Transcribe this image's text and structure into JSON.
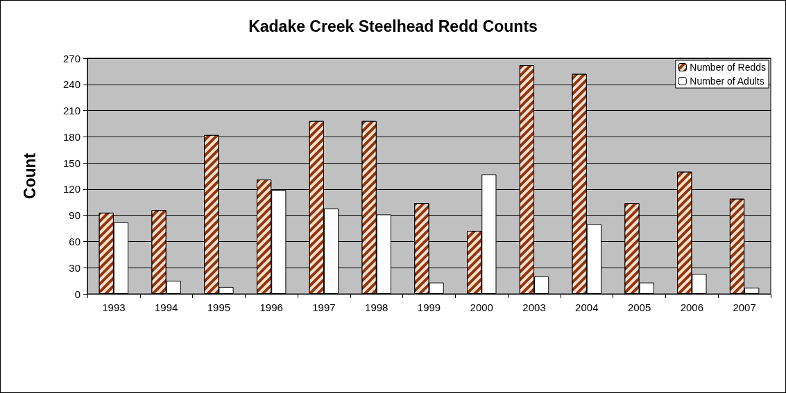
{
  "chart_data": {
    "type": "bar",
    "title": "Kadake Creek Steelhead Redd Counts",
    "ylabel": "Count",
    "categories": [
      "1993",
      "1994",
      "1995",
      "1996",
      "1997",
      "1998",
      "1999",
      "2000",
      "2003",
      "2004",
      "2005",
      "2006",
      "2007"
    ],
    "series": [
      {
        "name": "Number of Redds",
        "color": "#993300",
        "values": [
          93,
          96,
          182,
          131,
          198,
          198,
          104,
          72,
          262,
          252,
          104,
          140,
          109
        ]
      },
      {
        "name": "Number of Adults",
        "color": "#ffffff",
        "values": [
          82,
          15,
          8,
          119,
          98,
          91,
          13,
          137,
          20,
          80,
          13,
          23,
          7
        ]
      }
    ],
    "ylim": [
      0,
      270
    ],
    "yticks": [
      0,
      30,
      60,
      90,
      120,
      150,
      180,
      210,
      240,
      270
    ],
    "grid": "y",
    "legend": "top right"
  }
}
